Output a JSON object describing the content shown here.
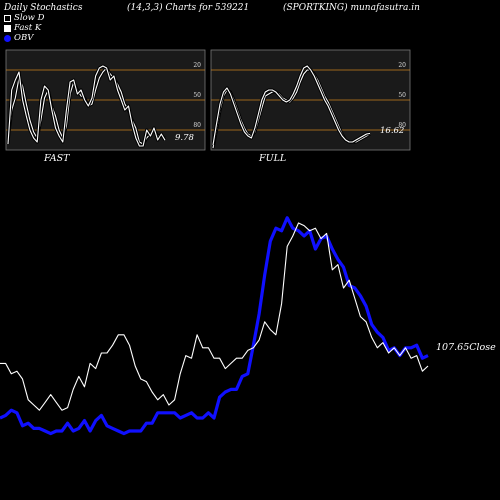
{
  "header": {
    "title": "Daily Stochastics",
    "params": "(14,3,3) Charts for 539221",
    "symbol": "(SPORTKING) munafasutra.in"
  },
  "legend": {
    "slow_d": "Slow  D",
    "fast_k": "Fast K",
    "obv": "OBV"
  },
  "colors": {
    "background": "#000000",
    "price": "#ffffff",
    "obv": "#1010ff",
    "level": "#c8801e",
    "panel": "#1a1a1a"
  },
  "chart_data": [
    {
      "type": "line",
      "title": "FAST",
      "ylim": [
        0,
        100
      ],
      "levels": [
        20,
        50,
        80
      ],
      "tick_labels": [
        "80",
        "50",
        "20"
      ],
      "last_value_label": "9.78",
      "series": [
        {
          "values": [
            10,
            40,
            52,
            72,
            64,
            46,
            30,
            18,
            12,
            30,
            52,
            60,
            44,
            34,
            20,
            12,
            24,
            56,
            68,
            60,
            54,
            52,
            44,
            46,
            60,
            72,
            78,
            82,
            76,
            72,
            66,
            58,
            46,
            40,
            30,
            22,
            8,
            6,
            12,
            16,
            20,
            14,
            14,
            12
          ]
        },
        {
          "values": [
            6,
            60,
            70,
            78,
            50,
            34,
            20,
            12,
            8,
            50,
            64,
            60,
            40,
            22,
            14,
            8,
            40,
            68,
            70,
            56,
            60,
            50,
            44,
            52,
            74,
            82,
            84,
            82,
            70,
            74,
            60,
            50,
            40,
            44,
            26,
            12,
            4,
            4,
            20,
            14,
            22,
            10,
            16,
            9.78
          ]
        }
      ]
    },
    {
      "type": "line",
      "title": "FULL",
      "ylim": [
        0,
        100
      ],
      "levels": [
        20,
        50,
        80
      ],
      "tick_labels": [
        "80",
        "50",
        "20"
      ],
      "last_value_label": "16.62",
      "series": [
        {
          "values": [
            2,
            20,
            40,
            54,
            60,
            58,
            50,
            40,
            30,
            22,
            16,
            14,
            18,
            30,
            42,
            54,
            56,
            58,
            58,
            56,
            52,
            50,
            48,
            52,
            58,
            68,
            76,
            80,
            80,
            76,
            70,
            62,
            54,
            48,
            40,
            32,
            24,
            16,
            10,
            8,
            8,
            8,
            10,
            12,
            14,
            16
          ]
        },
        {
          "values": [
            5,
            26,
            46,
            58,
            62,
            56,
            46,
            36,
            26,
            18,
            14,
            12,
            22,
            36,
            50,
            58,
            60,
            60,
            58,
            54,
            50,
            48,
            50,
            56,
            64,
            74,
            82,
            84,
            80,
            74,
            66,
            58,
            50,
            44,
            36,
            28,
            20,
            14,
            10,
            8,
            8,
            10,
            12,
            14,
            16,
            16.62
          ]
        }
      ]
    },
    {
      "type": "line",
      "close_label": "107.65Close",
      "series": [
        {
          "name": "Close",
          "values": [
            41,
            41,
            37,
            38,
            35,
            27,
            25,
            23,
            26,
            29,
            26,
            23,
            24,
            31,
            36,
            32,
            41,
            39,
            45,
            45,
            48,
            52,
            52,
            48,
            40,
            35,
            34,
            30,
            27,
            29,
            25,
            27,
            37,
            44,
            43,
            52,
            47,
            47,
            43,
            43,
            39,
            41,
            43,
            43,
            46,
            47,
            50,
            57,
            54,
            52,
            64,
            86,
            90,
            95,
            94,
            92,
            93,
            89,
            91,
            77,
            79,
            70,
            73,
            66,
            59,
            57,
            51,
            47,
            49,
            45,
            47,
            44,
            47,
            43,
            44,
            38,
            40
          ]
        },
        {
          "name": "OBV",
          "values": [
            20,
            21,
            23,
            22,
            17,
            18,
            16,
            16,
            15,
            14,
            15,
            15,
            18,
            15,
            16,
            19,
            15,
            19,
            21,
            17,
            16,
            15,
            14,
            15,
            15,
            15,
            18,
            18,
            22,
            22,
            22,
            22,
            20,
            21,
            22,
            20,
            20,
            22,
            20,
            28,
            30,
            31,
            31,
            36,
            37,
            48,
            60,
            75,
            88,
            93,
            92,
            97,
            93,
            92,
            90,
            92,
            85,
            89,
            90,
            85,
            81,
            78,
            71,
            70,
            67,
            63,
            56,
            53,
            51,
            46,
            47,
            44,
            47,
            47,
            48,
            43,
            44
          ]
        }
      ]
    }
  ]
}
